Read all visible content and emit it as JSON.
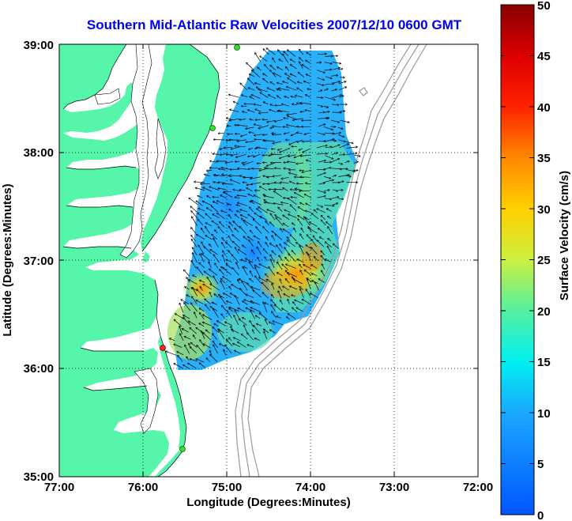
{
  "title": "Southern Mid-Atlantic Raw Velocities 2007/12/10 0600 GMT",
  "x_axis": {
    "label": "Longitude (Degrees:Minutes)",
    "ticks": [
      "77:00",
      "76:00",
      "75:00",
      "74:00",
      "73:00",
      "72:00"
    ]
  },
  "y_axis": {
    "label": "Latitude (Degrees:Minutes)",
    "ticks": [
      "39:00",
      "38:00",
      "37:00",
      "36:00",
      "35:00"
    ]
  },
  "colorbar": {
    "label": "Surface Velocity (cm/s)",
    "ticks": [
      "50",
      "45",
      "40",
      "35",
      "30",
      "25",
      "20",
      "15",
      "10",
      "5",
      "0"
    ],
    "min": 0,
    "max": 50
  },
  "colors": {
    "land": "#55f5aa",
    "title": "#0000ee",
    "station_active": "#33dd33",
    "station_alert": "#ff2222",
    "bathymetry": "#999999"
  },
  "map": {
    "lon_range": [
      -77,
      -72
    ],
    "lat_range": [
      35,
      39
    ],
    "grid": true
  }
}
